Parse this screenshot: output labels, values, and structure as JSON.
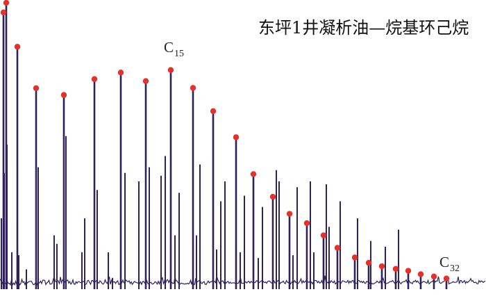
{
  "title": "东坪1井凝析油—烷基环己烷",
  "annotations": [
    {
      "letter": "C",
      "subscript": "15"
    },
    {
      "letter": "C",
      "subscript": "32"
    }
  ],
  "colors": {
    "trace": "#2e2258",
    "marker": "#e8302a",
    "background": "#ffffff"
  },
  "chart_data": {
    "type": "line",
    "title": "东坪1井凝析油—烷基环己烷",
    "xlabel": "",
    "ylabel": "",
    "axes_visible": false,
    "grid": false,
    "legend": "none",
    "ylim": [
      0,
      100
    ],
    "marked_peaks": {
      "name": "alkylcyclohexanes",
      "marker": "red-dot",
      "x": [
        5,
        9,
        25,
        52,
        92,
        136,
        174,
        210,
        246,
        278,
        307,
        340,
        365,
        393,
        417,
        442,
        466,
        486,
        511,
        531,
        550,
        570,
        588,
        606,
        625,
        643
      ],
      "values": [
        96.6,
        100,
        84.5,
        69.9,
        67.5,
        73.1,
        75.4,
        72.4,
        76.3,
        70.0,
        61.8,
        52.6,
        39.6,
        31.6,
        25.6,
        22.3,
        18.0,
        13.6,
        10.2,
        8.3,
        7.1,
        6.2,
        5.5,
        4.3,
        3.5,
        2.8
      ]
    },
    "other_peaks": {
      "name": "background-peaks",
      "x": [
        2,
        6,
        10,
        17,
        27,
        38,
        55,
        78,
        82,
        95,
        118,
        122,
        140,
        156,
        162,
        180,
        200,
        215,
        232,
        238,
        252,
        258,
        283,
        288,
        312,
        318,
        324,
        346,
        352,
        372,
        378,
        398,
        402,
        422,
        428,
        447,
        452,
        470,
        474,
        490,
        515,
        534,
        555,
        574
      ],
      "values": [
        24,
        40,
        50,
        12,
        11,
        6,
        42,
        18,
        15,
        53,
        12,
        24,
        34,
        12,
        3,
        40,
        37,
        42,
        39,
        46,
        18,
        33,
        18,
        43,
        13,
        30,
        37,
        12,
        32,
        10,
        28,
        41,
        37,
        11,
        35,
        37,
        12,
        36,
        21,
        30,
        24,
        16,
        14,
        20
      ]
    },
    "baseline": 1.5,
    "labeled_peaks": [
      {
        "label": "C15",
        "x": 246
      },
      {
        "label": "C32",
        "x": 643
      }
    ]
  }
}
